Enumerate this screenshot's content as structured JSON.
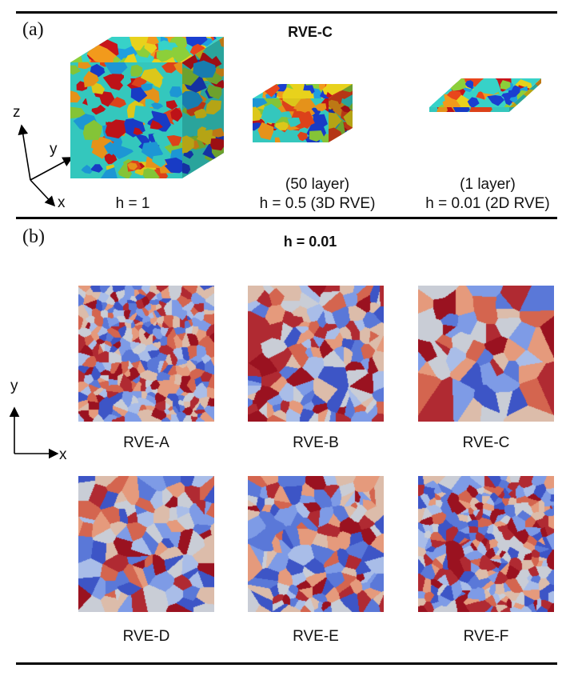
{
  "panel_a": {
    "label": "(a)",
    "title": "RVE-C",
    "captions": [
      {
        "lines": [
          "h = 1"
        ]
      },
      {
        "lines": [
          "(50 layer)",
          "h = 0.5 (3D RVE)"
        ]
      },
      {
        "lines": [
          "(1 layer)",
          "h = 0.01 (2D RVE)"
        ]
      }
    ],
    "axes": {
      "z": "z",
      "y": "y",
      "x": "x"
    }
  },
  "panel_b": {
    "label": "(b)",
    "title": "h = 0.01",
    "axes": {
      "y": "y",
      "x": "x"
    },
    "maps": [
      {
        "label": "RVE-A",
        "grains": 360
      },
      {
        "label": "RVE-B",
        "grains": 150
      },
      {
        "label": "RVE-C",
        "grains": 60
      },
      {
        "label": "RVE-D",
        "grains": 110
      },
      {
        "label": "RVE-E",
        "grains": 150
      },
      {
        "label": "RVE-F",
        "grains": 300
      }
    ]
  },
  "colors": {
    "jet": [
      "#1a3fd0",
      "#1f9fe0",
      "#37d2c8",
      "#8ccf3a",
      "#e8d21c",
      "#f29a1c",
      "#e8461c",
      "#c8141a"
    ],
    "coolwarm": [
      "#3d55c6",
      "#5a78d8",
      "#7e9be6",
      "#a9bde8",
      "#c9cdd6",
      "#dcbcaa",
      "#e59a7c",
      "#d4654f",
      "#b02a32",
      "#9a1220"
    ]
  }
}
